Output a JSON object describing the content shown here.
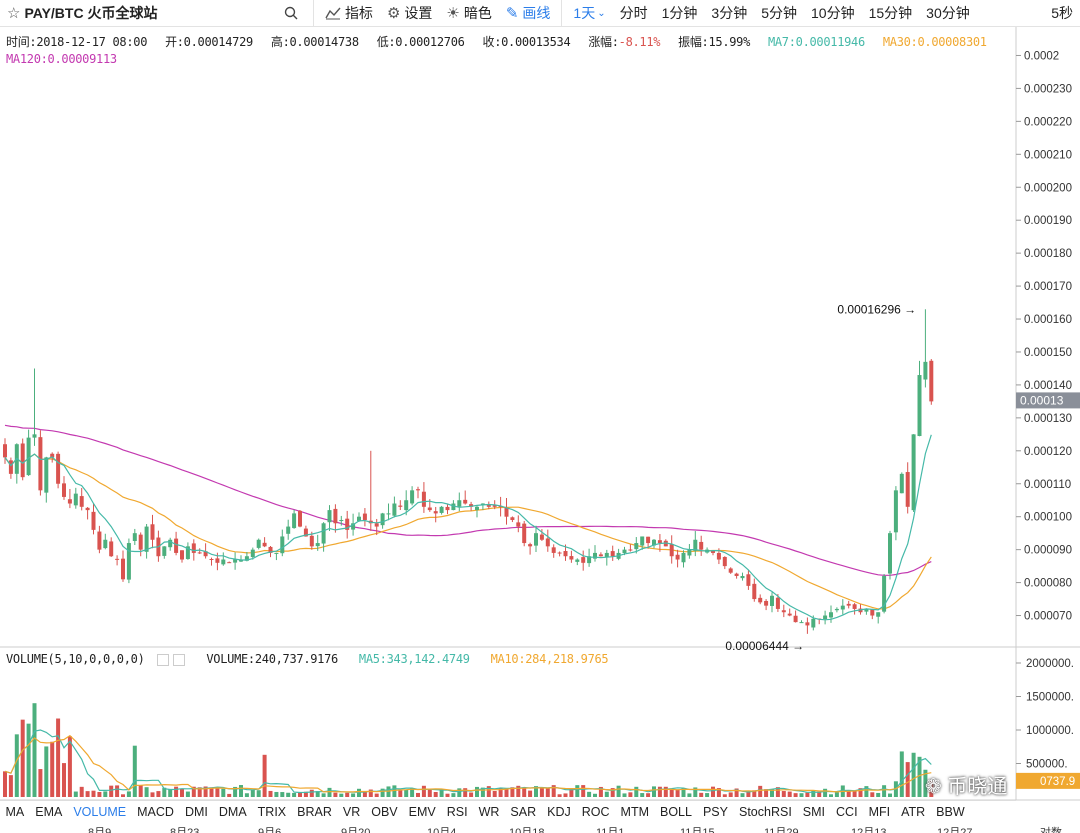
{
  "toolbar": {
    "symbol": "PAY/BTC",
    "exchange": "火币全球站",
    "indicators_label": "指标",
    "settings_label": "设置",
    "dark_label": "暗色",
    "draw_label": "画线",
    "intervals": [
      "1天",
      "分时",
      "1分钟",
      "3分钟",
      "5分钟",
      "10分钟",
      "15分钟",
      "30分钟"
    ],
    "active_interval": "1天",
    "right_interval": "5秒"
  },
  "ohlc": {
    "time": "时间:2018-12-17 08:00",
    "open": "开:0.00014729",
    "high": "高:0.00014738",
    "low": "低:0.00012706",
    "close": "收:0.00013534",
    "change": "涨幅:-8.11%",
    "amplitude": "振幅:15.99%",
    "ma7": "MA7:0.00011946",
    "ma30": "MA30:0.00008301",
    "ma120": "MA120:0.00009113"
  },
  "volume_info": {
    "label": "VOLUME(5,10,0,0,0,0)",
    "value": "VOLUME:240,737.9176",
    "ma5": "MA5:343,142.4749",
    "ma10": "MA10:284,218.9765"
  },
  "price_axis": [
    "0.0002",
    "0.000230",
    "0.000220",
    "0.000210",
    "0.000200",
    "0.000190",
    "0.000180",
    "0.000170",
    "0.000160",
    "0.000150",
    "0.000140",
    "0.00013",
    "0.000130",
    "0.000120",
    "0.000110",
    "0.000100",
    "0.000090",
    "0.000080",
    "0.000070"
  ],
  "current_price_tag": "0.00013",
  "volume_axis": [
    "2000000.",
    "1500000.",
    "1000000.",
    "500000.",
    "0737.9"
  ],
  "annotations": {
    "high": "0.00016296",
    "low": "0.00006444"
  },
  "indicators": [
    "MA",
    "EMA",
    "VOLUME",
    "MACD",
    "DMI",
    "DMA",
    "TRIX",
    "BRAR",
    "VR",
    "OBV",
    "EMV",
    "RSI",
    "WR",
    "SAR",
    "KDJ",
    "ROC",
    "MTM",
    "BOLL",
    "PSY",
    "StochRSI",
    "SMI",
    "CCI",
    "MFI",
    "ATR",
    "BBW"
  ],
  "active_indicator": "VOLUME",
  "dates": [
    "8月9",
    "8月23",
    "9月6",
    "9月20",
    "10月4",
    "10月18",
    "11月1",
    "11月15",
    "11月29",
    "12月13",
    "12月27",
    "对数"
  ],
  "watermark": "币晓通",
  "colors": {
    "up": "#4caf7d",
    "down": "#d9534f",
    "ma7": "#45b9a8",
    "ma30": "#f0a830",
    "ma120": "#c339b0",
    "accent": "#2b7de9"
  },
  "chart_data": {
    "type": "candlestick",
    "ylim": [
      6.5e-05,
      0.000245
    ],
    "candles_close": [
      0.000118,
      0.000113,
      0.000122,
      0.000112,
      0.000124,
      0.000125,
      0.000108,
      0.000118,
      0.000118,
      0.00011,
      0.000106,
      0.000104,
      0.000107,
      0.000103,
      0.000102,
      9.6e-05,
      9e-05,
      9.3e-05,
      8.8e-05,
      8.7e-05,
      8.1e-05,
      9.2e-05,
      9.5e-05,
      9e-05,
      9.7e-05,
      9.3e-05,
      8.8e-05,
      9.1e-05,
      9.3e-05,
      8.9e-05,
      8.7e-05,
      9.1e-05,
      8.9e-05,
      8.9e-05,
      8.8e-05,
      8.7e-05,
      8.6e-05,
      8.7e-05,
      8.6e-05,
      8.7e-05,
      8.7e-05,
      8.8e-05,
      9e-05,
      9.3e-05,
      9.1e-05,
      8.9e-05,
      8.9e-05,
      9.4e-05,
      9.7e-05,
      0.000101,
      9.7e-05,
      9.4e-05,
      9.1e-05,
      9.2e-05,
      9.8e-05,
      0.000102,
      9.8e-05,
      9.9e-05,
      9.6e-05,
      9.8e-05,
      0.0001,
      9.9e-05,
      9.8e-05,
      9.7e-05,
      0.000101,
      0.000101,
      0.000104,
      0.000103,
      0.000105,
      0.000108,
      0.000108,
      0.000103,
      0.000102,
      0.000101,
      0.000103,
      0.000102,
      0.000104,
      0.000105,
      0.000104,
      0.000103,
      0.000103,
      0.000104,
      0.000103,
      0.000103,
      0.000103,
      0.0001,
      9.9e-05,
      9.7e-05,
      9.2e-05,
      9.1e-05,
      9.5e-05,
      9.3e-05,
      9.1e-05,
      8.9e-05,
      8.9e-05,
      8.8e-05,
      8.7e-05,
      8.7e-05,
      8.6e-05,
      8.8e-05,
      8.9e-05,
      8.8e-05,
      8.9e-05,
      8.8e-05,
      8.9e-05,
      9e-05,
      9e-05,
      9.2e-05,
      9.4e-05,
      9.2e-05,
      9.3e-05,
      9.2e-05,
      9.1e-05,
      8.8e-05,
      8.7e-05,
      8.9e-05,
      9e-05,
      9.3e-05,
      9e-05,
      9e-05,
      8.9e-05,
      8.7e-05,
      8.5e-05,
      8.3e-05,
      8.2e-05,
      8.2e-05,
      7.9e-05,
      7.5e-05,
      7.4e-05,
      7.3e-05,
      7.6e-05,
      7.2e-05,
      7.1e-05,
      7e-05,
      6.8e-05,
      6.8e-05,
      6.7e-05,
      6.9e-05,
      6.9e-05,
      7e-05,
      7.1e-05,
      7.2e-05,
      7.3e-05,
      7.3e-05,
      7.2e-05,
      7.1e-05,
      7.2e-05,
      7e-05,
      7.1e-05,
      8.2e-05,
      9.5e-05,
      0.000108,
      0.000113,
      0.000103,
      0.000125,
      0.000143,
      0.000147,
      0.000135
    ]
  }
}
